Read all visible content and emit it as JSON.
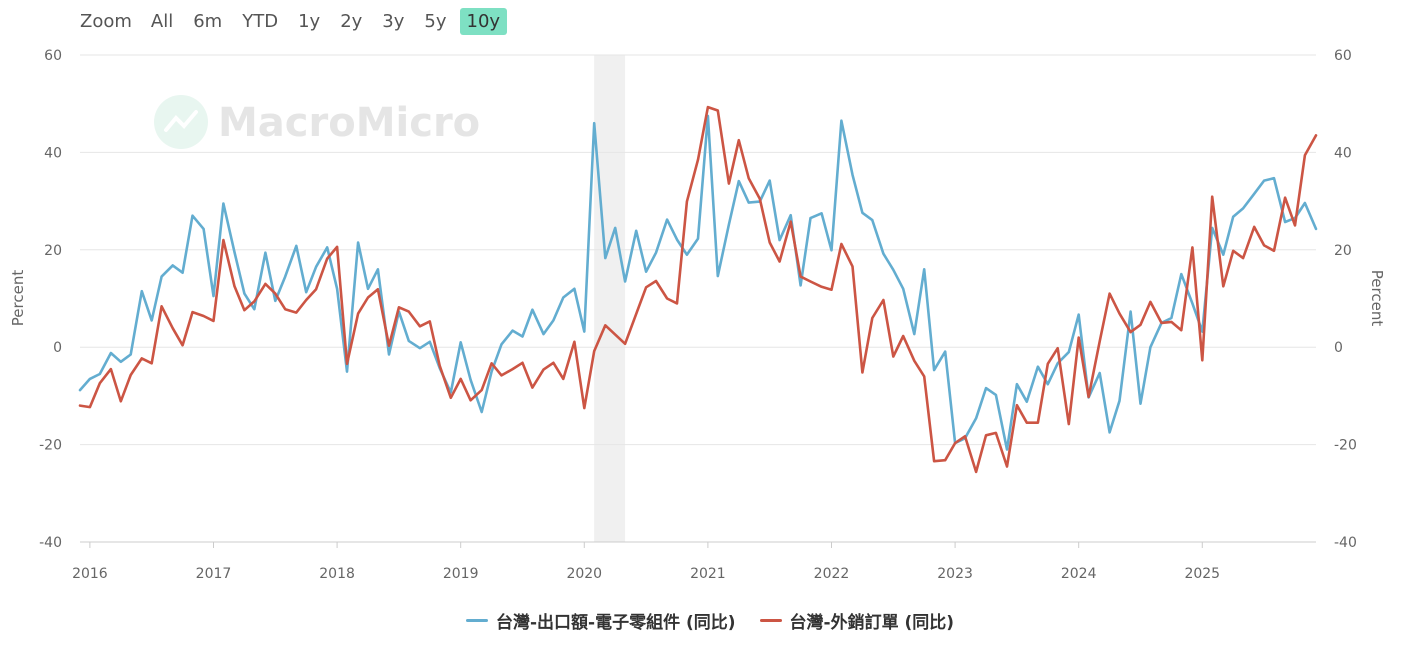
{
  "zoom": {
    "label": "Zoom",
    "buttons": [
      "All",
      "6m",
      "YTD",
      "1y",
      "2y",
      "3y",
      "5y",
      "10y"
    ],
    "active": "10y"
  },
  "watermark": "MacroMicro",
  "colors": {
    "series1": "#63add0",
    "series2": "#cc5544",
    "grid": "#e6e6e6",
    "band": "#f0f0f0",
    "active_zoom": "#7ee0c3"
  },
  "chart_data": {
    "type": "line",
    "ylabel_left": "Percent",
    "ylabel_right": "Percent",
    "ylim": [
      -40,
      60
    ],
    "yticks": [
      60,
      40,
      20,
      0,
      -20,
      -40
    ],
    "xlim": [
      2015.92,
      2025.92
    ],
    "xticks": [
      "2016",
      "2017",
      "2018",
      "2019",
      "2020",
      "2021",
      "2022",
      "2023",
      "2024",
      "2025"
    ],
    "shaded_period": [
      2020.08,
      2020.33
    ],
    "grid": true,
    "legend_position": "bottom-center",
    "series": [
      {
        "name": "台灣-出口額-電子零組件 (同比)",
        "color": "#63add0",
        "x": [
          2015.92,
          2016.0,
          2016.08,
          2016.17,
          2016.25,
          2016.33,
          2016.42,
          2016.5,
          2016.58,
          2016.67,
          2016.75,
          2016.83,
          2016.92,
          2017.0,
          2017.08,
          2017.17,
          2017.25,
          2017.33,
          2017.42,
          2017.5,
          2017.58,
          2017.67,
          2017.75,
          2017.83,
          2017.92,
          2018.0,
          2018.08,
          2018.17,
          2018.25,
          2018.33,
          2018.42,
          2018.5,
          2018.58,
          2018.67,
          2018.75,
          2018.83,
          2018.92,
          2019.0,
          2019.08,
          2019.17,
          2019.25,
          2019.33,
          2019.42,
          2019.5,
          2019.58,
          2019.67,
          2019.75,
          2019.83,
          2019.92,
          2020.0,
          2020.08,
          2020.17,
          2020.25,
          2020.33,
          2020.42,
          2020.5,
          2020.58,
          2020.67,
          2020.75,
          2020.83,
          2020.92,
          2021.0,
          2021.08,
          2021.17,
          2021.25,
          2021.33,
          2021.42,
          2021.5,
          2021.58,
          2021.67,
          2021.75,
          2021.83,
          2021.92,
          2022.0,
          2022.08,
          2022.17,
          2022.25,
          2022.33,
          2022.42,
          2022.5,
          2022.58,
          2022.67,
          2022.75,
          2022.83,
          2022.92,
          2023.0,
          2023.08,
          2023.17,
          2023.25,
          2023.33,
          2023.42,
          2023.5,
          2023.58,
          2023.67,
          2023.75,
          2023.83,
          2023.92,
          2024.0,
          2024.08,
          2024.17,
          2024.25,
          2024.33,
          2024.42,
          2024.5,
          2024.58,
          2024.67,
          2024.75,
          2024.83,
          2024.92,
          2025.0,
          2025.08,
          2025.17,
          2025.25,
          2025.33,
          2025.42,
          2025.5,
          2025.58,
          2025.67,
          2025.75,
          2025.83,
          2025.92
        ],
        "y": [
          -8.8,
          -6.5,
          -5.5,
          -1.2,
          -3.0,
          -1.5,
          11.5,
          5.5,
          14.5,
          16.8,
          15.3,
          27.0,
          24.3,
          10.5,
          29.5,
          19.5,
          11.0,
          7.8,
          19.4,
          9.5,
          14.5,
          20.8,
          11.3,
          16.5,
          20.5,
          12.0,
          -5.0,
          21.5,
          12.0,
          16.0,
          -1.5,
          7.3,
          1.3,
          -0.2,
          1.1,
          -4.3,
          -9.3,
          1.0,
          -6.7,
          -13.3,
          -5.0,
          0.6,
          3.4,
          2.2,
          7.7,
          2.7,
          5.5,
          10.2,
          12.0,
          3.2,
          46.0,
          18.3,
          24.5,
          13.5,
          23.9,
          15.5,
          19.4,
          26.2,
          22.1,
          19.0,
          22.3,
          47.5,
          14.6,
          25.2,
          34.1,
          29.7,
          29.9,
          34.2,
          22.0,
          27.1,
          12.7,
          26.5,
          27.5,
          19.9,
          46.5,
          35.4,
          27.6,
          26.1,
          19.2,
          15.9,
          12.0,
          2.7,
          16.0,
          -4.7,
          -0.9,
          -19.7,
          -18.7,
          -14.6,
          -8.4,
          -9.8,
          -21.0,
          -7.6,
          -11.2,
          -4.0,
          -7.6,
          -3.3,
          -1.0,
          6.7,
          -10.3,
          -5.3,
          -17.5,
          -11.0,
          7.3,
          -11.6,
          0.0,
          5.0,
          6.0,
          15.0,
          9.0,
          3.2,
          24.5,
          19.0,
          26.8,
          28.5,
          31.5,
          34.2,
          34.7,
          25.7,
          26.5,
          29.6,
          24.3
        ]
      },
      {
        "name": "台灣-外銷訂單 (同比)",
        "color": "#cc5544",
        "x": [
          2015.92,
          2016.0,
          2016.08,
          2016.17,
          2016.25,
          2016.33,
          2016.42,
          2016.5,
          2016.58,
          2016.67,
          2016.75,
          2016.83,
          2016.92,
          2017.0,
          2017.08,
          2017.17,
          2017.25,
          2017.33,
          2017.42,
          2017.5,
          2017.58,
          2017.67,
          2017.75,
          2017.83,
          2017.92,
          2018.0,
          2018.08,
          2018.17,
          2018.25,
          2018.33,
          2018.42,
          2018.5,
          2018.58,
          2018.67,
          2018.75,
          2018.83,
          2018.92,
          2019.0,
          2019.08,
          2019.17,
          2019.25,
          2019.33,
          2019.42,
          2019.5,
          2019.58,
          2019.67,
          2019.75,
          2019.83,
          2019.92,
          2020.0,
          2020.08,
          2020.17,
          2020.33,
          2020.5,
          2020.58,
          2020.67,
          2020.75,
          2020.83,
          2020.92,
          2021.0,
          2021.08,
          2021.17,
          2021.25,
          2021.33,
          2021.42,
          2021.5,
          2021.58,
          2021.67,
          2021.75,
          2021.83,
          2021.92,
          2022.0,
          2022.08,
          2022.17,
          2022.25,
          2022.33,
          2022.42,
          2022.5,
          2022.58,
          2022.67,
          2022.75,
          2022.83,
          2022.92,
          2023.0,
          2023.08,
          2023.17,
          2023.25,
          2023.33,
          2023.42,
          2023.5,
          2023.58,
          2023.67,
          2023.75,
          2023.83,
          2023.92,
          2024.0,
          2024.08,
          2024.17,
          2024.25,
          2024.33,
          2024.42,
          2024.5,
          2024.58,
          2024.67,
          2024.75,
          2024.83,
          2024.92,
          2025.0,
          2025.08,
          2025.17,
          2025.25,
          2025.33,
          2025.42,
          2025.5,
          2025.58,
          2025.67,
          2025.75,
          2025.83,
          2025.92
        ],
        "y": [
          -12.0,
          -12.3,
          -7.4,
          -4.5,
          -11.1,
          -5.7,
          -2.3,
          -3.3,
          8.4,
          3.9,
          0.4,
          7.2,
          6.4,
          5.4,
          22.0,
          12.5,
          7.6,
          9.4,
          13.0,
          11.0,
          7.8,
          7.1,
          9.7,
          11.9,
          18.2,
          20.6,
          -3.4,
          6.9,
          10.2,
          11.9,
          0.3,
          8.2,
          7.3,
          4.3,
          5.3,
          -3.8,
          -10.4,
          -6.5,
          -10.9,
          -8.8,
          -3.3,
          -5.8,
          -4.5,
          -3.2,
          -8.3,
          -4.6,
          -3.2,
          -6.5,
          1.1,
          -12.5,
          -0.8,
          4.5,
          0.7,
          12.3,
          13.6,
          10.0,
          9.0,
          29.9,
          38.5,
          49.3,
          48.6,
          33.6,
          42.5,
          34.7,
          30.5,
          21.5,
          17.6,
          25.8,
          14.5,
          13.5,
          12.4,
          11.8,
          21.2,
          16.6,
          -5.2,
          6.0,
          9.7,
          -1.9,
          2.3,
          -2.8,
          -6.0,
          -23.4,
          -23.2,
          -19.7,
          -18.3,
          -25.6,
          -18.1,
          -17.6,
          -24.5,
          -11.9,
          -15.5,
          -15.5,
          -3.4,
          -0.2,
          -15.8,
          2.0,
          -10.2,
          1.2,
          11.0,
          6.9,
          3.1,
          4.6,
          9.3,
          5.0,
          5.2,
          3.5,
          20.5,
          -2.7,
          30.9,
          12.5,
          19.8,
          18.3,
          24.7,
          20.9,
          19.8,
          30.7,
          25.0,
          39.4,
          43.5
        ]
      }
    ]
  }
}
